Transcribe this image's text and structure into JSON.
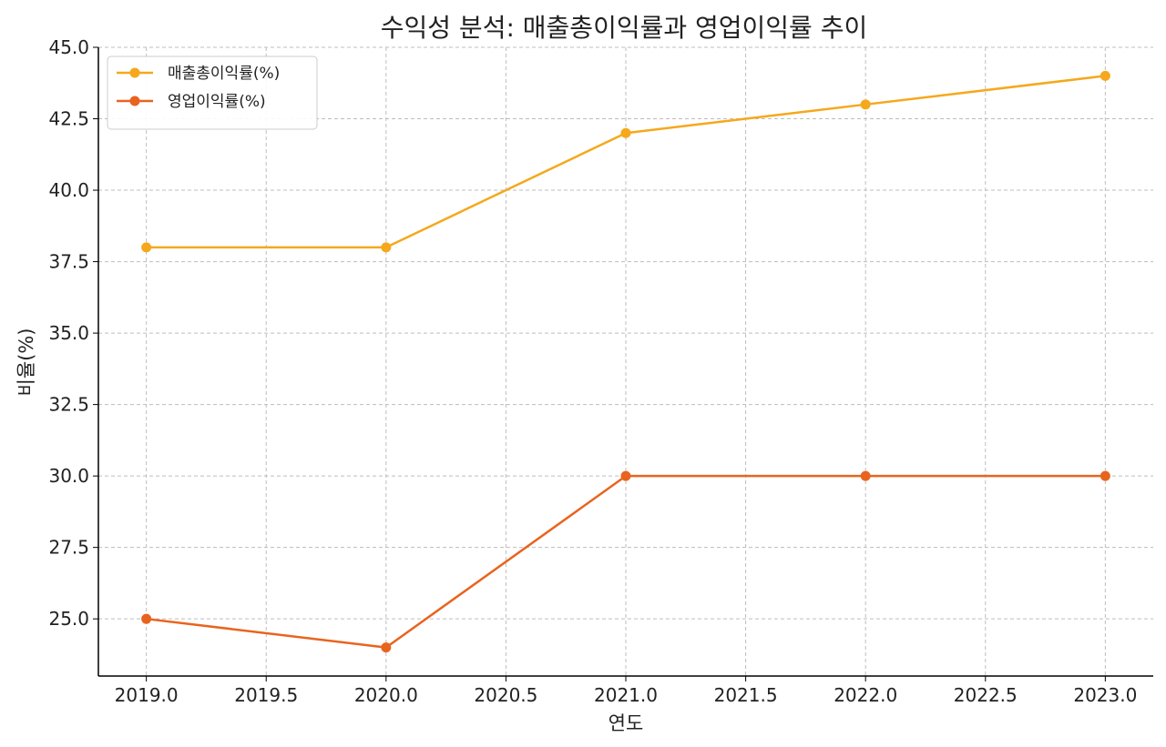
{
  "chart_data": {
    "type": "line",
    "title": "수익성 분석: 매출총이익률과 영업이익률 추이",
    "xlabel": "연도",
    "ylabel": "비율(%)",
    "x": [
      2019,
      2020,
      2021,
      2022,
      2023
    ],
    "xlim": [
      2018.8,
      2023.2
    ],
    "ylim": [
      23.0,
      45.0
    ],
    "xticks": [
      2019.0,
      2019.5,
      2020.0,
      2020.5,
      2021.0,
      2021.5,
      2022.0,
      2022.5,
      2023.0
    ],
    "xtick_labels": [
      "2019.0",
      "2019.5",
      "2020.0",
      "2020.5",
      "2021.0",
      "2021.5",
      "2022.0",
      "2022.5",
      "2023.0"
    ],
    "yticks": [
      25.0,
      27.5,
      30.0,
      32.5,
      35.0,
      37.5,
      40.0,
      42.5,
      45.0
    ],
    "ytick_labels": [
      "25.0",
      "27.5",
      "30.0",
      "32.5",
      "35.0",
      "37.5",
      "40.0",
      "42.5",
      "45.0"
    ],
    "grid": true,
    "legend_position": "top-left",
    "series": [
      {
        "name": "매출총이익률(%)",
        "color": "#F5A81C",
        "values": [
          38,
          38,
          42,
          43,
          44
        ]
      },
      {
        "name": "영업이익률(%)",
        "color": "#E8641E",
        "values": [
          25,
          24,
          30,
          30,
          30
        ]
      }
    ]
  }
}
